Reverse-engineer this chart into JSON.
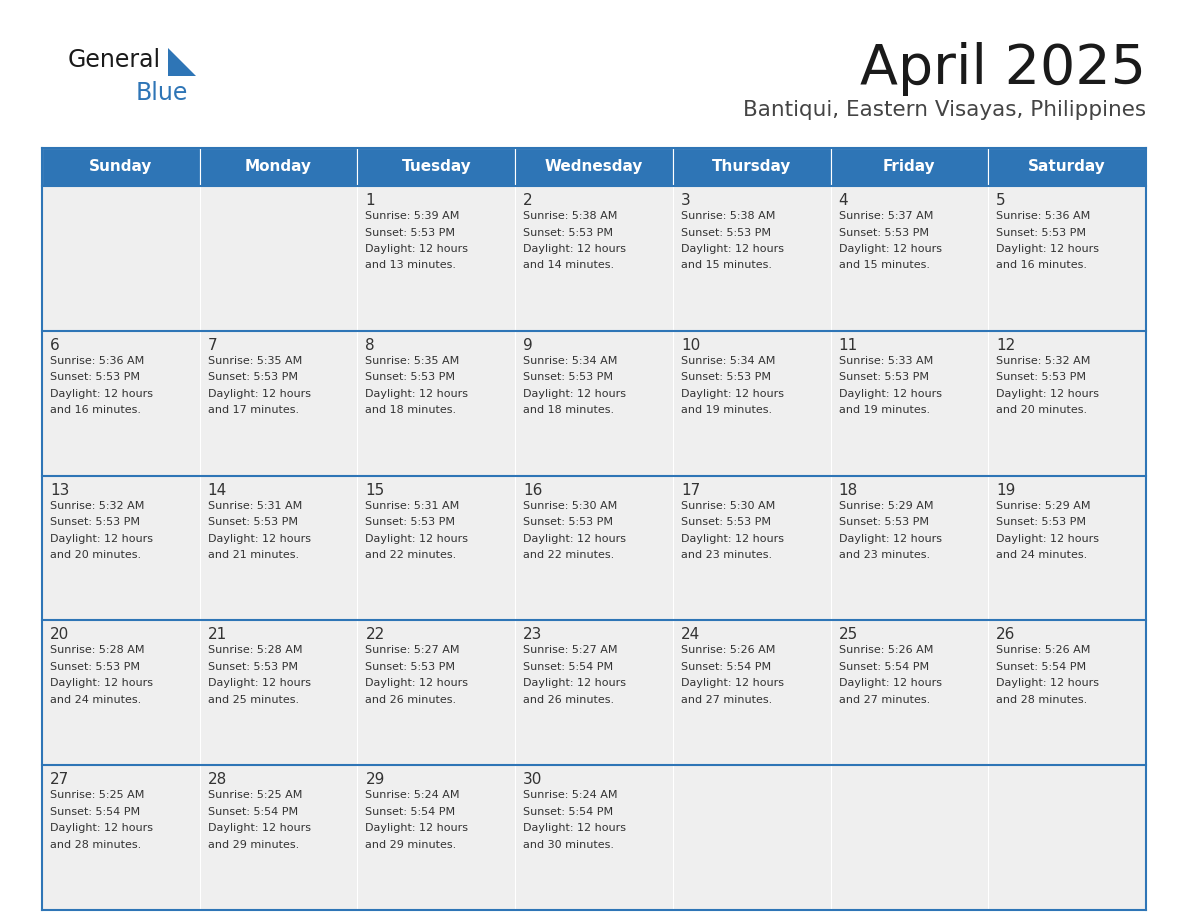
{
  "title": "April 2025",
  "subtitle": "Bantiqui, Eastern Visayas, Philippines",
  "header_color": "#2E75B6",
  "header_text_color": "#FFFFFF",
  "cell_bg_color": "#EFEFEF",
  "border_color": "#2E75B6",
  "text_color": "#333333",
  "days_of_week": [
    "Sunday",
    "Monday",
    "Tuesday",
    "Wednesday",
    "Thursday",
    "Friday",
    "Saturday"
  ],
  "weeks": [
    [
      {
        "day": "",
        "sunrise": "",
        "sunset": "",
        "daylight": ""
      },
      {
        "day": "",
        "sunrise": "",
        "sunset": "",
        "daylight": ""
      },
      {
        "day": "1",
        "sunrise": "Sunrise: 5:39 AM",
        "sunset": "Sunset: 5:53 PM",
        "daylight": "Daylight: 12 hours\nand 13 minutes."
      },
      {
        "day": "2",
        "sunrise": "Sunrise: 5:38 AM",
        "sunset": "Sunset: 5:53 PM",
        "daylight": "Daylight: 12 hours\nand 14 minutes."
      },
      {
        "day": "3",
        "sunrise": "Sunrise: 5:38 AM",
        "sunset": "Sunset: 5:53 PM",
        "daylight": "Daylight: 12 hours\nand 15 minutes."
      },
      {
        "day": "4",
        "sunrise": "Sunrise: 5:37 AM",
        "sunset": "Sunset: 5:53 PM",
        "daylight": "Daylight: 12 hours\nand 15 minutes."
      },
      {
        "day": "5",
        "sunrise": "Sunrise: 5:36 AM",
        "sunset": "Sunset: 5:53 PM",
        "daylight": "Daylight: 12 hours\nand 16 minutes."
      }
    ],
    [
      {
        "day": "6",
        "sunrise": "Sunrise: 5:36 AM",
        "sunset": "Sunset: 5:53 PM",
        "daylight": "Daylight: 12 hours\nand 16 minutes."
      },
      {
        "day": "7",
        "sunrise": "Sunrise: 5:35 AM",
        "sunset": "Sunset: 5:53 PM",
        "daylight": "Daylight: 12 hours\nand 17 minutes."
      },
      {
        "day": "8",
        "sunrise": "Sunrise: 5:35 AM",
        "sunset": "Sunset: 5:53 PM",
        "daylight": "Daylight: 12 hours\nand 18 minutes."
      },
      {
        "day": "9",
        "sunrise": "Sunrise: 5:34 AM",
        "sunset": "Sunset: 5:53 PM",
        "daylight": "Daylight: 12 hours\nand 18 minutes."
      },
      {
        "day": "10",
        "sunrise": "Sunrise: 5:34 AM",
        "sunset": "Sunset: 5:53 PM",
        "daylight": "Daylight: 12 hours\nand 19 minutes."
      },
      {
        "day": "11",
        "sunrise": "Sunrise: 5:33 AM",
        "sunset": "Sunset: 5:53 PM",
        "daylight": "Daylight: 12 hours\nand 19 minutes."
      },
      {
        "day": "12",
        "sunrise": "Sunrise: 5:32 AM",
        "sunset": "Sunset: 5:53 PM",
        "daylight": "Daylight: 12 hours\nand 20 minutes."
      }
    ],
    [
      {
        "day": "13",
        "sunrise": "Sunrise: 5:32 AM",
        "sunset": "Sunset: 5:53 PM",
        "daylight": "Daylight: 12 hours\nand 20 minutes."
      },
      {
        "day": "14",
        "sunrise": "Sunrise: 5:31 AM",
        "sunset": "Sunset: 5:53 PM",
        "daylight": "Daylight: 12 hours\nand 21 minutes."
      },
      {
        "day": "15",
        "sunrise": "Sunrise: 5:31 AM",
        "sunset": "Sunset: 5:53 PM",
        "daylight": "Daylight: 12 hours\nand 22 minutes."
      },
      {
        "day": "16",
        "sunrise": "Sunrise: 5:30 AM",
        "sunset": "Sunset: 5:53 PM",
        "daylight": "Daylight: 12 hours\nand 22 minutes."
      },
      {
        "day": "17",
        "sunrise": "Sunrise: 5:30 AM",
        "sunset": "Sunset: 5:53 PM",
        "daylight": "Daylight: 12 hours\nand 23 minutes."
      },
      {
        "day": "18",
        "sunrise": "Sunrise: 5:29 AM",
        "sunset": "Sunset: 5:53 PM",
        "daylight": "Daylight: 12 hours\nand 23 minutes."
      },
      {
        "day": "19",
        "sunrise": "Sunrise: 5:29 AM",
        "sunset": "Sunset: 5:53 PM",
        "daylight": "Daylight: 12 hours\nand 24 minutes."
      }
    ],
    [
      {
        "day": "20",
        "sunrise": "Sunrise: 5:28 AM",
        "sunset": "Sunset: 5:53 PM",
        "daylight": "Daylight: 12 hours\nand 24 minutes."
      },
      {
        "day": "21",
        "sunrise": "Sunrise: 5:28 AM",
        "sunset": "Sunset: 5:53 PM",
        "daylight": "Daylight: 12 hours\nand 25 minutes."
      },
      {
        "day": "22",
        "sunrise": "Sunrise: 5:27 AM",
        "sunset": "Sunset: 5:53 PM",
        "daylight": "Daylight: 12 hours\nand 26 minutes."
      },
      {
        "day": "23",
        "sunrise": "Sunrise: 5:27 AM",
        "sunset": "Sunset: 5:54 PM",
        "daylight": "Daylight: 12 hours\nand 26 minutes."
      },
      {
        "day": "24",
        "sunrise": "Sunrise: 5:26 AM",
        "sunset": "Sunset: 5:54 PM",
        "daylight": "Daylight: 12 hours\nand 27 minutes."
      },
      {
        "day": "25",
        "sunrise": "Sunrise: 5:26 AM",
        "sunset": "Sunset: 5:54 PM",
        "daylight": "Daylight: 12 hours\nand 27 minutes."
      },
      {
        "day": "26",
        "sunrise": "Sunrise: 5:26 AM",
        "sunset": "Sunset: 5:54 PM",
        "daylight": "Daylight: 12 hours\nand 28 minutes."
      }
    ],
    [
      {
        "day": "27",
        "sunrise": "Sunrise: 5:25 AM",
        "sunset": "Sunset: 5:54 PM",
        "daylight": "Daylight: 12 hours\nand 28 minutes."
      },
      {
        "day": "28",
        "sunrise": "Sunrise: 5:25 AM",
        "sunset": "Sunset: 5:54 PM",
        "daylight": "Daylight: 12 hours\nand 29 minutes."
      },
      {
        "day": "29",
        "sunrise": "Sunrise: 5:24 AM",
        "sunset": "Sunset: 5:54 PM",
        "daylight": "Daylight: 12 hours\nand 29 minutes."
      },
      {
        "day": "30",
        "sunrise": "Sunrise: 5:24 AM",
        "sunset": "Sunset: 5:54 PM",
        "daylight": "Daylight: 12 hours\nand 30 minutes."
      },
      {
        "day": "",
        "sunrise": "",
        "sunset": "",
        "daylight": ""
      },
      {
        "day": "",
        "sunrise": "",
        "sunset": "",
        "daylight": ""
      },
      {
        "day": "",
        "sunrise": "",
        "sunset": "",
        "daylight": ""
      }
    ]
  ]
}
